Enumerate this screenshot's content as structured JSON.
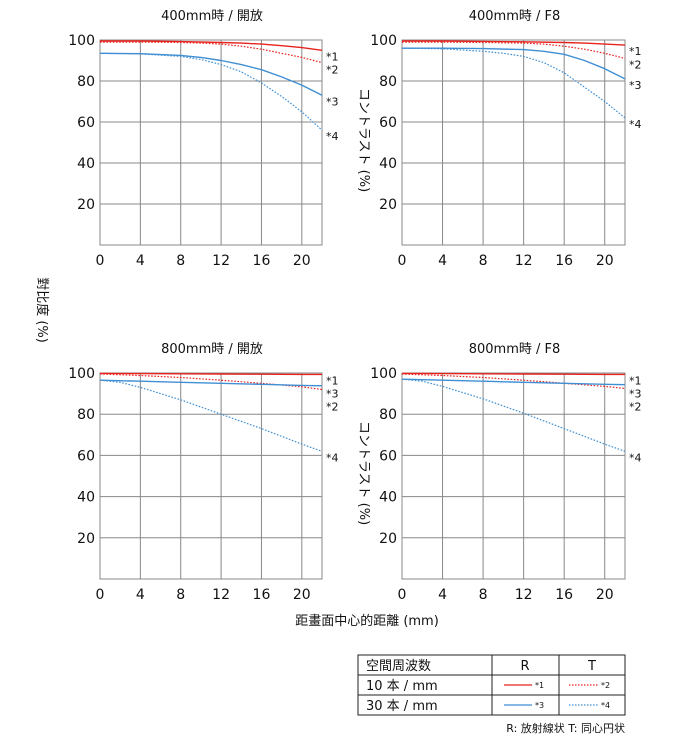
{
  "y_axis_label_left": "對比度 (%)",
  "y_axis_label_right": "コントラスト (%)",
  "x_axis_label": "距畫面中心的距離 (mm)",
  "legend": {
    "header": [
      "空間周波数",
      "R",
      "T"
    ],
    "rows": [
      {
        "label": "10 本 / mm",
        "r_tag": "*1",
        "t_tag": "*2"
      },
      {
        "label": "30 本 / mm",
        "r_tag": "*3",
        "t_tag": "*4"
      }
    ],
    "note": "R: 放射線状 T: 同心円状"
  },
  "colors": {
    "red": "#e8221d",
    "blue": "#3f8fd4",
    "grid": "#888888"
  },
  "chart_data": [
    {
      "type": "line",
      "title": "400mm時 / 開放",
      "xlim": [
        0,
        22
      ],
      "ylim": [
        0,
        100
      ],
      "xticks": [
        0,
        4,
        8,
        12,
        16,
        20
      ],
      "yticks": [
        20,
        40,
        60,
        80,
        100
      ],
      "series": [
        {
          "name": "*1",
          "color": "red",
          "dash": false,
          "x": [
            0,
            4,
            8,
            12,
            14,
            16,
            18,
            20,
            22
          ],
          "y": [
            99.5,
            99.5,
            99.2,
            98.8,
            98.5,
            98,
            97.2,
            96.3,
            95
          ]
        },
        {
          "name": "*2",
          "color": "red",
          "dash": true,
          "x": [
            0,
            4,
            8,
            10,
            12,
            14,
            16,
            18,
            20,
            22
          ],
          "y": [
            99,
            99,
            98.8,
            98.5,
            98,
            97,
            95.5,
            93.5,
            91.5,
            89
          ]
        },
        {
          "name": "*3",
          "color": "blue",
          "dash": false,
          "x": [
            0,
            4,
            8,
            10,
            12,
            14,
            16,
            18,
            20,
            22
          ],
          "y": [
            93.5,
            93.3,
            92.5,
            91.5,
            90,
            88,
            85.5,
            82,
            78,
            73
          ]
        },
        {
          "name": "*4",
          "color": "blue",
          "dash": true,
          "x": [
            0,
            4,
            8,
            10,
            12,
            14,
            16,
            18,
            20,
            22
          ],
          "y": [
            93.5,
            93.2,
            92,
            90.5,
            88,
            84.5,
            79,
            72.5,
            65,
            56
          ]
        }
      ]
    },
    {
      "type": "line",
      "title": "400mm時 / F8",
      "xlim": [
        0,
        22
      ],
      "ylim": [
        0,
        100
      ],
      "xticks": [
        0,
        4,
        8,
        12,
        16,
        20
      ],
      "yticks": [
        20,
        40,
        60,
        80,
        100
      ],
      "series": [
        {
          "name": "*1",
          "color": "red",
          "dash": false,
          "x": [
            0,
            4,
            8,
            12,
            16,
            18,
            20,
            22
          ],
          "y": [
            99.5,
            99.5,
            99.3,
            99.1,
            98.8,
            98.5,
            98,
            97.5
          ]
        },
        {
          "name": "*2",
          "color": "red",
          "dash": true,
          "x": [
            0,
            4,
            8,
            12,
            14,
            16,
            18,
            20,
            22
          ],
          "y": [
            99,
            99,
            98.8,
            98.5,
            98,
            97,
            95.5,
            93.5,
            91
          ]
        },
        {
          "name": "*3",
          "color": "blue",
          "dash": false,
          "x": [
            0,
            4,
            8,
            12,
            14,
            16,
            18,
            20,
            22
          ],
          "y": [
            96,
            96,
            95.8,
            95.3,
            94.5,
            93,
            90,
            86,
            81
          ]
        },
        {
          "name": "*4",
          "color": "blue",
          "dash": true,
          "x": [
            0,
            4,
            8,
            10,
            12,
            14,
            16,
            18,
            20,
            22
          ],
          "y": [
            96,
            95.7,
            94.5,
            93.5,
            92,
            89,
            84,
            77,
            70,
            62
          ]
        }
      ]
    },
    {
      "type": "line",
      "title": "800mm時 / 開放",
      "xlim": [
        0,
        22
      ],
      "ylim": [
        0,
        100
      ],
      "xticks": [
        0,
        4,
        8,
        12,
        16,
        20
      ],
      "yticks": [
        20,
        40,
        60,
        80,
        100
      ],
      "series": [
        {
          "name": "*1",
          "color": "red",
          "dash": false,
          "x": [
            0,
            4,
            8,
            12,
            16,
            20,
            22
          ],
          "y": [
            99.8,
            99.7,
            99.6,
            99.5,
            99.4,
            99.3,
            99.3
          ]
        },
        {
          "name": "*2",
          "color": "red",
          "dash": true,
          "x": [
            0,
            4,
            8,
            12,
            16,
            20,
            22
          ],
          "y": [
            99.5,
            98.8,
            97.8,
            96.5,
            95,
            93.3,
            92
          ]
        },
        {
          "name": "*3",
          "color": "blue",
          "dash": false,
          "x": [
            0,
            4,
            8,
            12,
            16,
            20,
            22
          ],
          "y": [
            96.5,
            96,
            95.5,
            95,
            94.5,
            94,
            93.8
          ]
        },
        {
          "name": "*4",
          "color": "blue",
          "dash": true,
          "x": [
            0,
            2,
            4,
            6,
            8,
            12,
            16,
            20,
            22
          ],
          "y": [
            96.5,
            95.5,
            93,
            90,
            87,
            80,
            73,
            65.5,
            62
          ]
        }
      ]
    },
    {
      "type": "line",
      "title": "800mm時 / F8",
      "xlim": [
        0,
        22
      ],
      "ylim": [
        0,
        100
      ],
      "xticks": [
        0,
        4,
        8,
        12,
        16,
        20
      ],
      "yticks": [
        20,
        40,
        60,
        80,
        100
      ],
      "series": [
        {
          "name": "*1",
          "color": "red",
          "dash": false,
          "x": [
            0,
            4,
            8,
            12,
            16,
            20,
            22
          ],
          "y": [
            99.8,
            99.7,
            99.6,
            99.5,
            99.4,
            99.3,
            99.3
          ]
        },
        {
          "name": "*2",
          "color": "red",
          "dash": true,
          "x": [
            0,
            4,
            8,
            12,
            16,
            20,
            22
          ],
          "y": [
            99.5,
            98.8,
            97.8,
            96.5,
            95,
            93.5,
            92.5
          ]
        },
        {
          "name": "*3",
          "color": "blue",
          "dash": false,
          "x": [
            0,
            4,
            8,
            12,
            16,
            20,
            22
          ],
          "y": [
            97,
            96.5,
            96,
            95.5,
            95,
            94.5,
            94.3
          ]
        },
        {
          "name": "*4",
          "color": "blue",
          "dash": true,
          "x": [
            0,
            2,
            4,
            6,
            8,
            12,
            16,
            20,
            22
          ],
          "y": [
            97,
            96,
            93.5,
            90.5,
            87.5,
            80.5,
            73,
            65.5,
            62
          ]
        }
      ]
    }
  ]
}
